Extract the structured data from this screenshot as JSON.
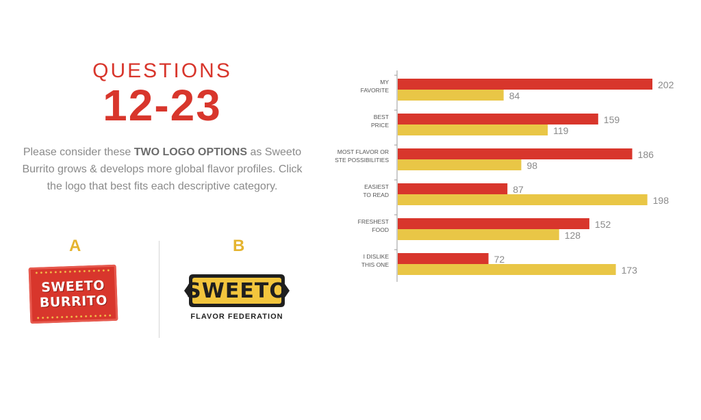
{
  "heading": {
    "line1": "QUESTIONS",
    "line2": "12-23"
  },
  "description": {
    "part1": "Please consider these ",
    "bold": "TWO LOGO OPTIONS",
    "part2": " as Sweeto Burrito grows & develops more global flavor profiles. Click the logo that best fits each descriptive category."
  },
  "options": {
    "a": {
      "letter": "A",
      "logo_lines": [
        "SWEETO",
        "BURRITO"
      ]
    },
    "b": {
      "letter": "B",
      "logo_word": "SWEETO",
      "logo_sub": "FLAVOR FEDERATION"
    }
  },
  "colors": {
    "series_a": "#d8362c",
    "series_b": "#e9c646",
    "axis": "#9a9a9a"
  },
  "chart_data": {
    "type": "bar",
    "orientation": "horizontal",
    "categories": [
      [
        "MY",
        "FAVORITE"
      ],
      [
        "BEST",
        "PRICE"
      ],
      [
        "MOST FLAVOR OR",
        "STE POSSIBILITIES"
      ],
      [
        "EASIEST",
        "TO READ"
      ],
      [
        "FRESHEST",
        "FOOD"
      ],
      [
        "I DISLIKE",
        "THIS ONE"
      ]
    ],
    "series": [
      {
        "values": [
          202,
          159,
          186,
          87,
          152,
          72
        ]
      },
      {
        "values": [
          84,
          119,
          98,
          198,
          128,
          173
        ]
      }
    ],
    "xlim": [
      0,
      202
    ],
    "grid": false,
    "data_labels": true
  }
}
